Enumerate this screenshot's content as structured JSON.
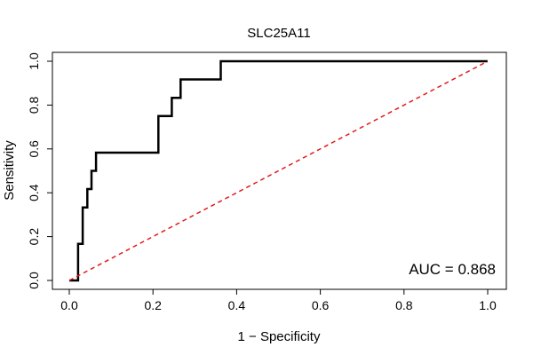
{
  "chart_data": {
    "type": "line",
    "title": "SLC25A11",
    "xlabel": "1 − Specificity",
    "ylabel": "Sensitivity",
    "xlim": [
      0,
      1
    ],
    "ylim": [
      0,
      1
    ],
    "x_ticks": [
      0.0,
      0.2,
      0.4,
      0.6,
      0.8,
      1.0
    ],
    "y_ticks": [
      0.0,
      0.2,
      0.4,
      0.6,
      0.8,
      1.0
    ],
    "x_tick_labels": [
      "0.0",
      "0.2",
      "0.4",
      "0.6",
      "0.8",
      "1.0"
    ],
    "y_tick_labels": [
      "0.0",
      "0.2",
      "0.4",
      "0.6",
      "0.8",
      "1.0"
    ],
    "series": [
      {
        "name": "ROC curve",
        "color": "#000000",
        "style": "solid",
        "x": [
          0.0,
          0.021,
          0.021,
          0.021,
          0.021,
          0.032,
          0.032,
          0.032,
          0.043,
          0.043,
          0.053,
          0.053,
          0.053,
          0.064,
          0.064,
          0.064,
          0.213,
          0.213,
          0.213,
          0.223,
          0.223,
          0.245,
          0.245,
          0.245,
          0.266,
          0.266,
          0.266,
          0.362,
          0.362,
          0.362,
          1.0
        ],
        "y": [
          0.0,
          0.0,
          0.083,
          0.083,
          0.167,
          0.167,
          0.25,
          0.333,
          0.333,
          0.417,
          0.417,
          0.5,
          0.5,
          0.5,
          0.583,
          0.583,
          0.583,
          0.667,
          0.75,
          0.75,
          0.75,
          0.75,
          0.833,
          0.833,
          0.833,
          0.917,
          0.917,
          0.917,
          1.0,
          1.0,
          1.0
        ]
      },
      {
        "name": "Reference line",
        "color": "#e31a1c",
        "style": "dashed",
        "x": [
          0,
          1
        ],
        "y": [
          0,
          1
        ]
      }
    ],
    "annotation": "AUC = 0.868",
    "grid": false
  }
}
